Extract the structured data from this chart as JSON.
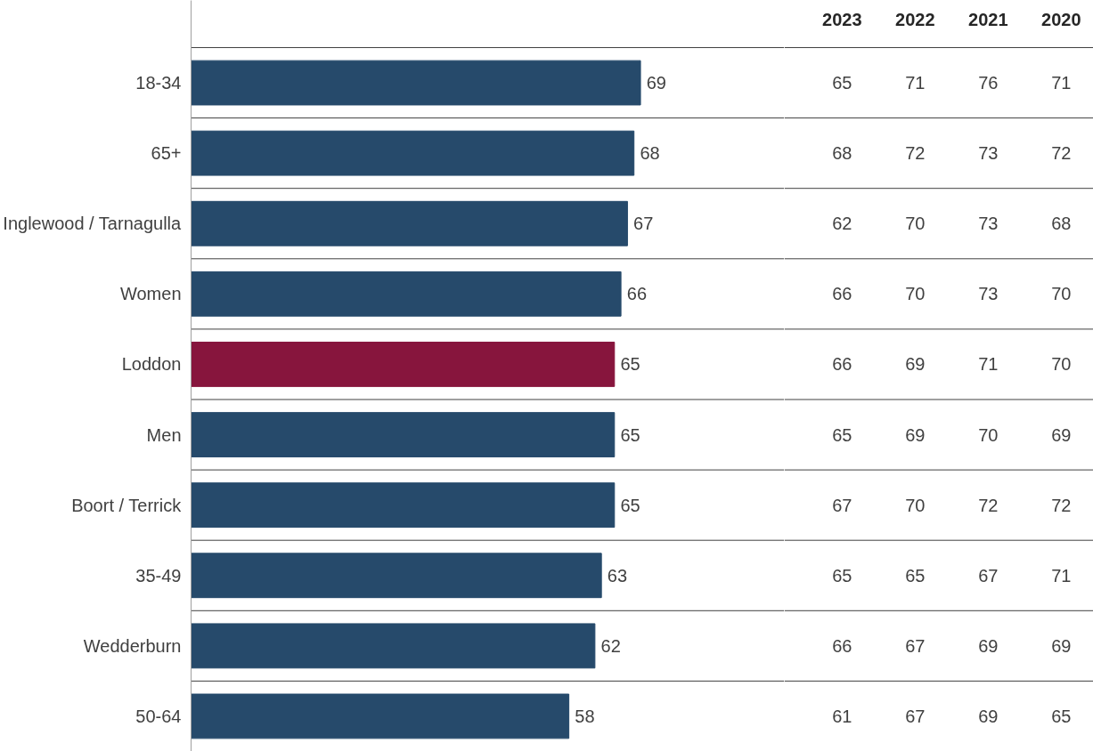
{
  "chart_data": [
    {
      "type": "bar",
      "orientation": "horizontal",
      "data_labels": true,
      "tick_labels": "y",
      "grid": "y",
      "categories": [
        "18-34",
        "65+",
        "Inglewood / Tarnagulla",
        "Women",
        "Loddon",
        "Men",
        "Boort / Terrick",
        "35-49",
        "Wedderburn",
        "50-64"
      ],
      "series": [
        {
          "type": "bar",
          "values": [
            69,
            68,
            67,
            66,
            65,
            65,
            65,
            63,
            62,
            58
          ],
          "colors": [
            "#264a6b",
            "#264a6b",
            "#264a6b",
            "#264a6b",
            "#87153d",
            "#264a6b",
            "#264a6b",
            "#264a6b",
            "#264a6b",
            "#264a6b"
          ]
        }
      ]
    },
    {
      "type": "heatmap",
      "tick_labels": "x",
      "data_labels": true,
      "grid": "y",
      "categories": [
        "2023",
        "2022",
        "2021",
        "2020"
      ],
      "y_categories": [
        null,
        null,
        null,
        null,
        null,
        null,
        null,
        null,
        null,
        null
      ],
      "cells": [
        [
          65,
          71,
          76,
          71
        ],
        [
          68,
          72,
          73,
          72
        ],
        [
          62,
          70,
          73,
          68
        ],
        [
          66,
          70,
          73,
          70
        ],
        [
          66,
          69,
          71,
          70
        ],
        [
          65,
          69,
          70,
          69
        ],
        [
          67,
          70,
          72,
          72
        ],
        [
          65,
          65,
          67,
          71
        ],
        [
          66,
          67,
          69,
          69
        ],
        [
          61,
          67,
          69,
          65
        ]
      ]
    }
  ]
}
